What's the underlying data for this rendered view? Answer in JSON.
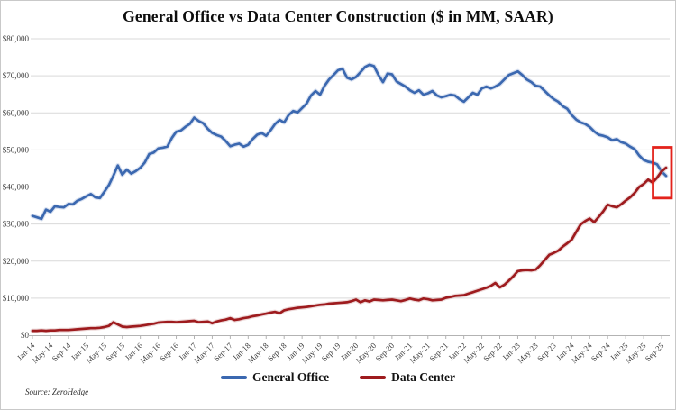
{
  "source_note": "Source: ZeroHedge",
  "chart_data": {
    "type": "line",
    "title": "General Office vs Data Center Construction ($ in MM, SAAR)",
    "xlabel": "",
    "ylabel": "",
    "ylim": [
      0,
      80000
    ],
    "grid": "horizontal",
    "legend_position": "bottom",
    "y_ticks": [
      0,
      10000,
      20000,
      30000,
      40000,
      50000,
      60000,
      70000,
      80000
    ],
    "y_tick_labels": [
      "$0",
      "$10,000",
      "$20,000",
      "$30,000",
      "$40,000",
      "$50,000",
      "$60,000",
      "$70,000",
      "$80,000"
    ],
    "x_months_per_tick": 4,
    "x_tick_labels": [
      "Jan-14",
      "May-14",
      "Sep-14",
      "Jan-15",
      "May-15",
      "Sep-15",
      "Jan-16",
      "May-16",
      "Sep-16",
      "Jan-17",
      "May-17",
      "Sep-17",
      "Jan-18",
      "May-18",
      "Sep-18",
      "Jan-19",
      "May-19",
      "Sep-19",
      "Jan-20",
      "May-20",
      "Sep-20",
      "Jan-21",
      "May-21",
      "Sep-21",
      "Jan-22",
      "May-22",
      "Sep-22",
      "Jan-23",
      "May-23",
      "Sep-23",
      "Jan-24",
      "May-24",
      "Sep-24",
      "Jan-25",
      "May-25",
      "Sep-25"
    ],
    "x_range_note": "monthly data, Jan-2014 through Oct-2025",
    "series": [
      {
        "name": "General Office",
        "color": "#3B68B0",
        "halo_color": "#9FB4DA",
        "values": [
          32200,
          31800,
          31400,
          33900,
          33300,
          34800,
          34600,
          34500,
          35400,
          35300,
          36300,
          36800,
          37500,
          38100,
          37200,
          37000,
          38700,
          40500,
          43000,
          45800,
          43300,
          44700,
          43600,
          44300,
          45200,
          46600,
          48900,
          49300,
          50400,
          50600,
          50900,
          53200,
          54900,
          55200,
          56200,
          57000,
          58700,
          57800,
          57200,
          55700,
          54600,
          54000,
          53600,
          52400,
          51000,
          51400,
          51700,
          50900,
          51400,
          52900,
          54100,
          54600,
          53800,
          55300,
          57000,
          58100,
          57400,
          59400,
          60500,
          60100,
          61300,
          62500,
          64700,
          65900,
          64900,
          67300,
          69000,
          70200,
          71500,
          71900,
          69500,
          69000,
          69700,
          71000,
          72400,
          73000,
          72600,
          70200,
          68300,
          70600,
          70400,
          68500,
          67800,
          67100,
          66100,
          65400,
          66100,
          64900,
          65300,
          65900,
          64700,
          64200,
          64500,
          64900,
          64700,
          63700,
          63000,
          64200,
          65400,
          64900,
          66600,
          67100,
          66600,
          67100,
          67800,
          69000,
          70200,
          70700,
          71200,
          70200,
          69000,
          68300,
          67300,
          67100,
          65900,
          64700,
          63700,
          63000,
          61800,
          61100,
          59400,
          58200,
          57400,
          57000,
          56200,
          55000,
          54100,
          53800,
          53400,
          52600,
          52900,
          52100,
          51700,
          50900,
          50200,
          48500,
          47300,
          46800,
          46600,
          46100,
          44200,
          43000
        ]
      },
      {
        "name": "Data Center",
        "color": "#9E1B1E",
        "halo_color": "#D2A3A3",
        "values": [
          1200,
          1200,
          1300,
          1200,
          1300,
          1300,
          1400,
          1400,
          1400,
          1500,
          1600,
          1700,
          1800,
          1900,
          1900,
          2000,
          2200,
          2500,
          3500,
          2900,
          2300,
          2200,
          2300,
          2400,
          2500,
          2700,
          2900,
          3100,
          3400,
          3500,
          3600,
          3600,
          3500,
          3600,
          3700,
          3800,
          3900,
          3500,
          3600,
          3700,
          3200,
          3700,
          4000,
          4200,
          4600,
          4100,
          4300,
          4600,
          4800,
          5100,
          5300,
          5600,
          5800,
          6100,
          6300,
          5900,
          6700,
          7000,
          7200,
          7400,
          7500,
          7600,
          7800,
          8000,
          8200,
          8300,
          8500,
          8600,
          8700,
          8800,
          8900,
          9200,
          9600,
          8900,
          9400,
          9100,
          9600,
          9500,
          9400,
          9500,
          9600,
          9400,
          9200,
          9500,
          9900,
          9600,
          9400,
          9900,
          9700,
          9400,
          9500,
          9600,
          10100,
          10300,
          10600,
          10700,
          10800,
          11200,
          11600,
          12000,
          12400,
          12800,
          13300,
          14100,
          12900,
          13600,
          14700,
          15900,
          17300,
          17500,
          17600,
          17500,
          17700,
          18900,
          20300,
          21700,
          22200,
          22800,
          23900,
          24800,
          25800,
          27900,
          29900,
          30800,
          31500,
          30500,
          31900,
          33400,
          35200,
          34800,
          34500,
          35300,
          36300,
          37200,
          38400,
          40000,
          40800,
          42000,
          41200,
          42500,
          44200,
          45200
        ]
      }
    ],
    "annotation": {
      "type": "highlight-box",
      "description": "red rectangle highlighting the crossover of the two lines at the right edge",
      "color": "#E3231C",
      "x_start_index": 138.1,
      "x_end_index": 142.2,
      "y_min": 37000,
      "y_max": 50700
    },
    "colors": {
      "gridline": "#D9D9D9",
      "axis": "#B3B3B3",
      "tick_label": "#3C3C3C"
    }
  }
}
